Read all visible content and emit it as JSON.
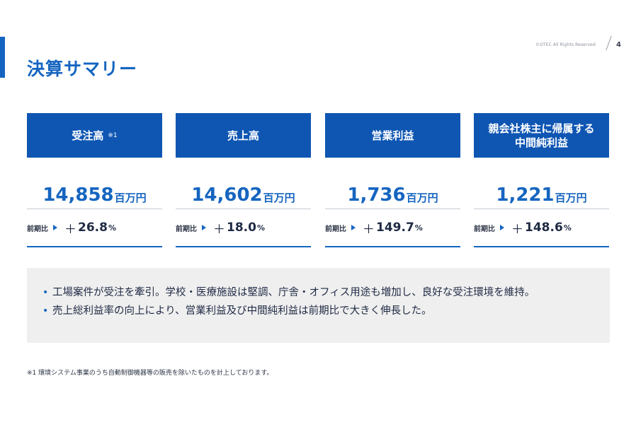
{
  "header": {
    "title": "決算サマリー",
    "copyright": "©OTEC All Rights Reserved",
    "page_number": "4"
  },
  "colors": {
    "accent": "#1565c0",
    "card_header_bg": "#0f56b3",
    "summary_bg": "#efefef"
  },
  "cards": [
    {
      "title": "受注高",
      "note": "※1",
      "value": "14,858",
      "unit": "百万円",
      "yoy_label": "前期比",
      "yoy_sign": "＋",
      "yoy_value": "26.8",
      "yoy_unit": "%"
    },
    {
      "title": "売上高",
      "note": "",
      "value": "14,602",
      "unit": "百万円",
      "yoy_label": "前期比",
      "yoy_sign": "＋",
      "yoy_value": "18.0",
      "yoy_unit": "%"
    },
    {
      "title": "営業利益",
      "note": "",
      "value": "1,736",
      "unit": "百万円",
      "yoy_label": "前期比",
      "yoy_sign": "＋",
      "yoy_value": "149.7",
      "yoy_unit": "%"
    },
    {
      "title": "親会社株主に帰属する中間純利益",
      "title_line1": "親会社株主に帰属する",
      "title_line2": "中間純利益",
      "note": "",
      "value": "1,221",
      "unit": "百万円",
      "yoy_label": "前期比",
      "yoy_sign": "＋",
      "yoy_value": "148.6",
      "yoy_unit": "%"
    }
  ],
  "summary": {
    "bullet_glyph": "•",
    "points": [
      "工場案件が受注を牽引。学校・医療施設は堅調、庁舎・オフィス用途も増加し、良好な受注環境を維持。",
      "売上総利益率の向上により、営業利益及び中間純利益は前期比で大きく伸長した。"
    ]
  },
  "footnote": "※1 環境システム事業のうち自動制御機器等の販売を除いたものを計上しております。"
}
